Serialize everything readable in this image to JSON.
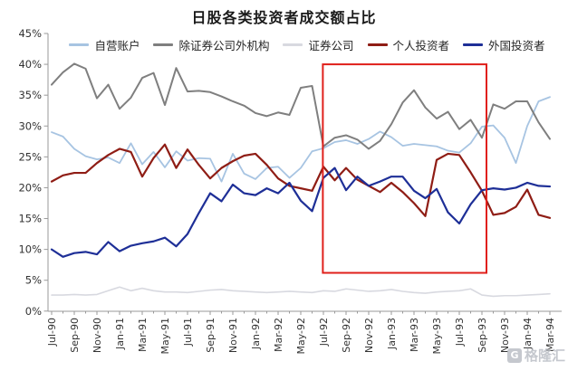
{
  "title": "日股各类投资者成交额占比",
  "watermark": {
    "logo": "G",
    "text": "格隆汇"
  },
  "axis": {
    "line_color": "#9a9a9a",
    "label_color": "#333333"
  },
  "chart_data": {
    "type": "line",
    "title": "日股各类投资者成交额占比",
    "xlabel": "",
    "ylabel": "",
    "ylim": [
      0,
      45
    ],
    "grid": false,
    "legend_position": "top",
    "y_tick_labels": [
      "0%",
      "5%",
      "10%",
      "15%",
      "20%",
      "25%",
      "30%",
      "35%",
      "40%",
      "45%"
    ],
    "x_tick_labels": [
      "Jul-90",
      "Sep-90",
      "Nov-90",
      "Jan-91",
      "Mar-91",
      "May-91",
      "Jul-91",
      "Sep-91",
      "Nov-91",
      "Jan-92",
      "Mar-92",
      "May-92",
      "Jul-92",
      "Sep-92",
      "Nov-92",
      "Jan-93",
      "Mar-93",
      "May-93",
      "Jul-93",
      "Sep-93",
      "Nov-93",
      "Jan-94",
      "Mar-94"
    ],
    "x": [
      "Jul-90",
      "Aug-90",
      "Sep-90",
      "Oct-90",
      "Nov-90",
      "Dec-90",
      "Jan-91",
      "Feb-91",
      "Mar-91",
      "Apr-91",
      "May-91",
      "Jun-91",
      "Jul-91",
      "Aug-91",
      "Sep-91",
      "Oct-91",
      "Nov-91",
      "Dec-91",
      "Jan-92",
      "Feb-92",
      "Mar-92",
      "Apr-92",
      "May-92",
      "Jun-92",
      "Jul-92",
      "Aug-92",
      "Sep-92",
      "Oct-92",
      "Nov-92",
      "Dec-92",
      "Jan-93",
      "Feb-93",
      "Mar-93",
      "Apr-93",
      "May-93",
      "Jun-93",
      "Jul-93",
      "Aug-93",
      "Sep-93",
      "Oct-93",
      "Nov-93",
      "Dec-93",
      "Jan-94",
      "Feb-94",
      "Mar-94"
    ],
    "series": [
      {
        "name": "自营账户",
        "color": "#a7c4e2",
        "values": [
          29.0,
          28.3,
          26.3,
          25.1,
          24.6,
          24.9,
          24.0,
          27.2,
          23.8,
          25.8,
          23.3,
          25.9,
          24.4,
          24.8,
          24.7,
          21.0,
          25.5,
          22.3,
          21.4,
          23.2,
          23.4,
          21.6,
          23.2,
          25.9,
          26.4,
          27.4,
          27.7,
          27.1,
          27.9,
          29.1,
          28.2,
          26.8,
          27.1,
          26.9,
          26.7,
          26.0,
          25.7,
          27.2,
          29.9,
          30.1,
          28.1,
          24.0,
          30.0,
          34.0,
          34.7
        ]
      },
      {
        "name": "除证券公司外机构",
        "color": "#7f7f7f",
        "values": [
          36.7,
          38.7,
          40.1,
          39.3,
          34.5,
          36.7,
          32.8,
          34.6,
          37.8,
          38.6,
          33.4,
          39.4,
          35.6,
          35.7,
          35.5,
          34.8,
          34.0,
          33.3,
          32.1,
          31.6,
          32.2,
          31.8,
          36.2,
          36.5,
          26.7,
          28.1,
          28.5,
          27.8,
          26.3,
          27.6,
          30.3,
          33.8,
          35.8,
          33.0,
          31.2,
          32.3,
          29.5,
          31.0,
          28.1,
          33.5,
          32.8,
          34.0,
          34.0,
          30.6,
          27.9
        ]
      },
      {
        "name": "证券公司",
        "color": "#d8d9e0",
        "values": [
          2.6,
          2.6,
          2.7,
          2.6,
          2.7,
          3.3,
          3.9,
          3.3,
          3.7,
          3.3,
          3.1,
          3.1,
          3.0,
          3.2,
          3.4,
          3.5,
          3.3,
          3.2,
          3.1,
          3.0,
          3.1,
          3.2,
          3.1,
          3.0,
          3.3,
          3.2,
          3.6,
          3.4,
          3.2,
          3.3,
          3.5,
          3.2,
          3.0,
          2.9,
          3.1,
          3.2,
          3.3,
          3.6,
          2.6,
          2.4,
          2.5,
          2.5,
          2.6,
          2.7,
          2.8
        ]
      },
      {
        "name": "个人投资者",
        "color": "#8f1d15",
        "values": [
          21.0,
          22.0,
          22.4,
          22.4,
          24.0,
          25.3,
          26.3,
          25.8,
          21.8,
          24.8,
          27.0,
          23.2,
          26.2,
          23.7,
          21.5,
          23.2,
          24.3,
          25.2,
          25.5,
          23.7,
          21.5,
          20.3,
          19.9,
          19.5,
          23.4,
          21.2,
          23.2,
          21.3,
          20.3,
          19.3,
          20.8,
          19.3,
          17.5,
          15.4,
          24.5,
          25.5,
          25.3,
          22.5,
          19.5,
          15.6,
          15.9,
          16.9,
          19.7,
          15.6,
          15.1
        ]
      },
      {
        "name": "外国投资者",
        "color": "#1e2f97",
        "values": [
          10.0,
          8.8,
          9.4,
          9.6,
          9.2,
          11.2,
          9.7,
          10.6,
          11.0,
          11.3,
          11.9,
          10.5,
          12.5,
          15.9,
          19.1,
          17.8,
          20.5,
          19.1,
          18.8,
          19.9,
          19.1,
          20.8,
          17.9,
          16.2,
          21.6,
          23.2,
          19.6,
          21.8,
          20.3,
          21.0,
          21.8,
          21.8,
          19.5,
          18.3,
          19.8,
          16.0,
          14.2,
          17.3,
          19.6,
          19.9,
          19.7,
          20.0,
          20.8,
          20.3,
          20.2
        ]
      }
    ],
    "highlight_box": {
      "x_from": "Jul-92",
      "x_to": "Oct-93",
      "x_index_from": 23.95,
      "x_index_to": 38.4,
      "y_from": 6.2,
      "y_to": 40,
      "color": "#e0201b"
    }
  }
}
